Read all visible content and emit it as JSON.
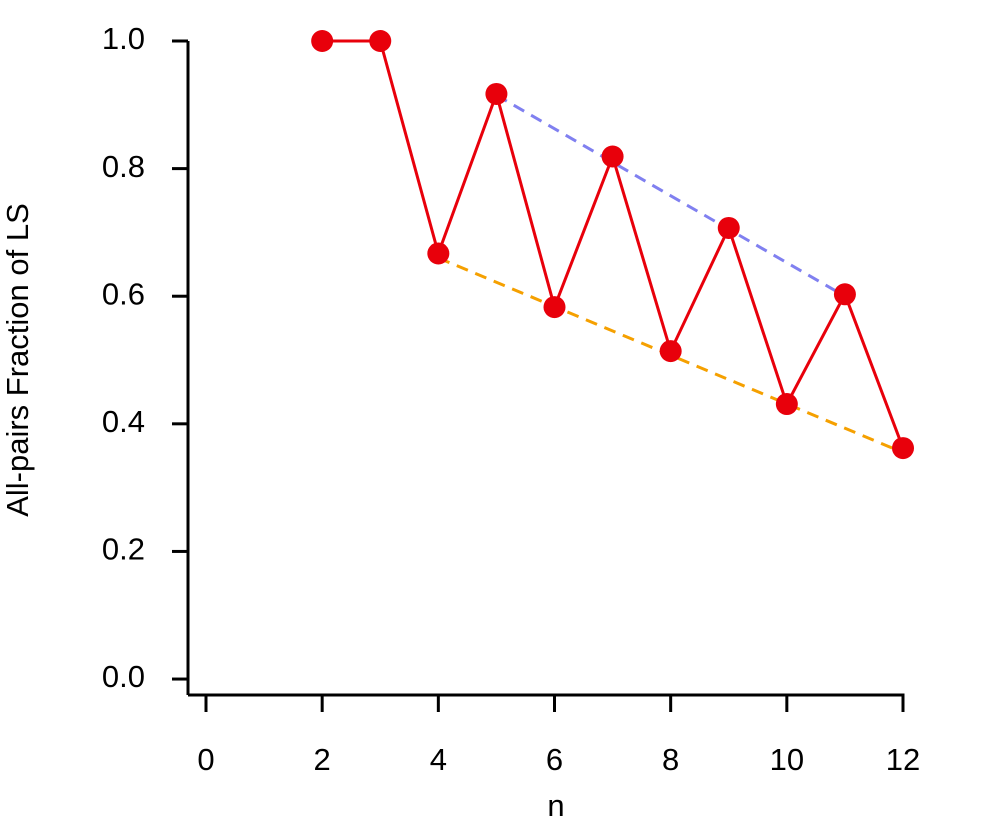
{
  "chart_data": {
    "type": "line",
    "xlabel": "n",
    "ylabel": "All-pairs Fraction of LS",
    "xlim": [
      -0.31,
      12
    ],
    "ylim": [
      -0.025,
      1.0
    ],
    "xticks": [
      0,
      2,
      4,
      6,
      8,
      10,
      12
    ],
    "yticks": [
      {
        "value": 0,
        "label": "0.0"
      },
      {
        "value": 0.2,
        "label": "0.2"
      },
      {
        "value": 0.4,
        "label": "0.4"
      },
      {
        "value": 0.6,
        "label": "0.6"
      },
      {
        "value": 0.8,
        "label": "0.8"
      },
      {
        "value": 1.0,
        "label": "1.0"
      }
    ],
    "series": [
      {
        "color": "#e8000b",
        "linestyle": "solid",
        "markers": true,
        "x": [
          2,
          3,
          4,
          5,
          6,
          7,
          8,
          9,
          10,
          11,
          12
        ],
        "values": [
          1.0,
          1.0,
          0.667,
          0.917,
          0.583,
          0.819,
          0.514,
          0.707,
          0.431,
          0.603,
          0.362
        ]
      },
      {
        "color": "#8080f0",
        "linestyle": "dashed",
        "markers": false,
        "x": [
          5,
          11
        ],
        "values": [
          0.915,
          0.6
        ]
      },
      {
        "color": "#f5a000",
        "linestyle": "dashed",
        "markers": false,
        "x": [
          4,
          12
        ],
        "values": [
          0.66,
          0.355
        ]
      }
    ]
  }
}
